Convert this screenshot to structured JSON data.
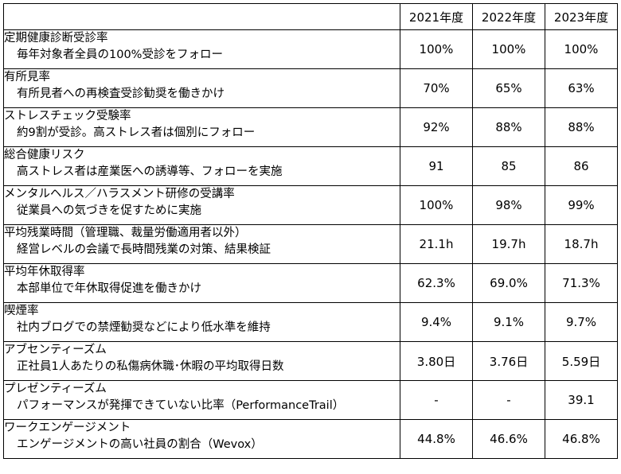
{
  "header": {
    "years": [
      "2021年度",
      "2022年度",
      "2023年度"
    ]
  },
  "rows": [
    {
      "name": "定期健康診断受診率",
      "note": "毎年対象者全員の100%受診をフォロー",
      "values": [
        "100%",
        "100%",
        "100%"
      ]
    },
    {
      "name": "有所見率",
      "note": "有所見者への再検査受診勧奨を働きかけ",
      "values": [
        "70%",
        "65%",
        "63%"
      ]
    },
    {
      "name": "ストレスチェック受験率",
      "note": "約9割が受診。高ストレス者は個別にフォロー",
      "values": [
        "92%",
        "88%",
        "88%"
      ]
    },
    {
      "name": "総合健康リスク",
      "note": "高ストレス者は産業医への誘導等、フォローを実施",
      "values": [
        "91",
        "85",
        "86"
      ]
    },
    {
      "name": "メンタルヘルス／ハラスメント研修の受講率",
      "note": "従業員への気づきを促すために実施",
      "values": [
        "100%",
        "98%",
        "99%"
      ]
    },
    {
      "name": "平均残業時間（管理職、裁量労働適用者以外）",
      "note": "経営レベルの会議で長時間残業の対策、結果検証",
      "values": [
        "21.1h",
        "19.7h",
        "18.7h"
      ]
    },
    {
      "name": "平均年休取得率",
      "note": "本部単位で年休取得促進を働きかけ",
      "values": [
        "62.3%",
        "69.0%",
        "71.3%"
      ]
    },
    {
      "name": "喫煙率",
      "note": "社内ブログでの禁煙勧奨などにより低水準を維持",
      "values": [
        "9.4%",
        "9.1%",
        "9.7%"
      ]
    },
    {
      "name": "アブセンティーズム",
      "note": "正社員1人あたりの私傷病休職･休暇の平均取得日数",
      "values": [
        "3.80日",
        "3.76日",
        "5.59日"
      ]
    },
    {
      "name": "プレゼンティーズム",
      "note": "パフォーマンスが発揮できていない比率（PerformanceTrail）",
      "values": [
        "-",
        "-",
        "39.1"
      ]
    },
    {
      "name": "ワークエンゲージメント",
      "note": "エンゲージメントの高い社員の割合（Wevox）",
      "values": [
        "44.8%",
        "46.6%",
        "46.8%"
      ]
    }
  ]
}
